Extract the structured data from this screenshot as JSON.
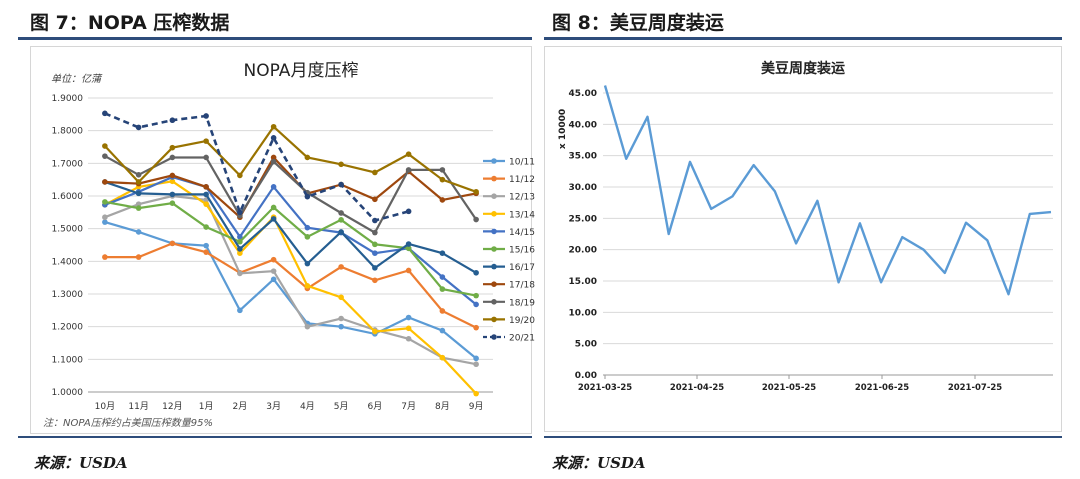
{
  "left": {
    "fig_title": "图 7：NOPA 压榨数据",
    "source": "来源：USDA"
  },
  "right": {
    "fig_title": "图 8：美豆周度装运",
    "source": "来源：USDA"
  },
  "chart_data": [
    {
      "type": "line",
      "title": "NOPA月度压榨",
      "unit_label": "单位：亿蒲",
      "note": "注：NOPA压榨约占美国压榨数量95%",
      "categories": [
        "10月",
        "11月",
        "12月",
        "1月",
        "2月",
        "3月",
        "4月",
        "5月",
        "6月",
        "7月",
        "8月",
        "9月"
      ],
      "ylim": [
        1.0,
        1.9
      ],
      "yticks": [
        "1.0000",
        "1.1000",
        "1.2000",
        "1.3000",
        "1.4000",
        "1.5000",
        "1.6000",
        "1.7000",
        "1.8000",
        "1.9000"
      ],
      "grid": true,
      "legend_position": "right",
      "series": [
        {
          "name": "10/11",
          "color": "#5b9bd5",
          "dashed": false,
          "values": [
            1.52,
            1.49,
            1.455,
            1.448,
            1.25,
            1.345,
            1.21,
            1.2,
            1.178,
            1.228,
            1.188,
            1.103
          ]
        },
        {
          "name": "11/12",
          "color": "#ed7d31",
          "dashed": false,
          "values": [
            1.413,
            1.413,
            1.455,
            1.428,
            1.365,
            1.405,
            1.317,
            1.383,
            1.342,
            1.372,
            1.248,
            1.197
          ]
        },
        {
          "name": "12/13",
          "color": "#a5a5a5",
          "dashed": false,
          "values": [
            1.535,
            1.575,
            1.6,
            1.588,
            1.363,
            1.37,
            1.2,
            1.225,
            1.19,
            1.163,
            1.105,
            1.085
          ]
        },
        {
          "name": "13/14",
          "color": "#ffc000",
          "dashed": false,
          "values": [
            1.573,
            1.628,
            1.645,
            1.575,
            1.425,
            1.535,
            1.325,
            1.29,
            1.185,
            1.195,
            1.105,
            0.995
          ]
        },
        {
          "name": "14/15",
          "color": "#4472c4",
          "dashed": false,
          "values": [
            1.573,
            1.613,
            1.658,
            1.628,
            1.475,
            1.628,
            1.503,
            1.488,
            1.425,
            1.44,
            1.352,
            1.268
          ]
        },
        {
          "name": "15/16",
          "color": "#70ad47",
          "dashed": false,
          "values": [
            1.582,
            1.563,
            1.578,
            1.505,
            1.46,
            1.565,
            1.475,
            1.527,
            1.452,
            1.44,
            1.315,
            1.295
          ]
        },
        {
          "name": "16/17",
          "color": "#255e91",
          "dashed": false,
          "values": [
            1.643,
            1.608,
            1.605,
            1.605,
            1.438,
            1.53,
            1.393,
            1.49,
            1.38,
            1.453,
            1.425,
            1.365
          ]
        },
        {
          "name": "17/18",
          "color": "#9e480e",
          "dashed": false,
          "values": [
            1.643,
            1.638,
            1.663,
            1.628,
            1.535,
            1.718,
            1.608,
            1.635,
            1.59,
            1.675,
            1.588,
            1.608
          ]
        },
        {
          "name": "18/19",
          "color": "#636363",
          "dashed": false,
          "values": [
            1.722,
            1.665,
            1.718,
            1.718,
            1.54,
            1.705,
            1.61,
            1.548,
            1.488,
            1.68,
            1.68,
            1.528
          ]
        },
        {
          "name": "19/20",
          "color": "#997300",
          "dashed": false,
          "values": [
            1.753,
            1.643,
            1.748,
            1.768,
            1.663,
            1.812,
            1.718,
            1.697,
            1.672,
            1.728,
            1.65,
            1.613
          ]
        },
        {
          "name": "20/21",
          "color": "#264478",
          "dashed": true,
          "values": [
            1.853,
            1.81,
            1.832,
            1.845,
            1.55,
            1.778,
            1.598,
            1.635,
            1.525,
            1.553,
            null,
            null
          ]
        }
      ]
    },
    {
      "type": "line",
      "title": "美豆周度装运",
      "ylabel": "x 10000",
      "ylim": [
        0,
        45
      ],
      "yticks": [
        "0.00",
        "5.00",
        "10.00",
        "15.00",
        "20.00",
        "25.00",
        "30.00",
        "35.00",
        "40.00",
        "45.00"
      ],
      "xticks": [
        "2021-03-25",
        "2021-04-25",
        "2021-05-25",
        "2021-06-25",
        "2021-07-25"
      ],
      "grid": true,
      "series": [
        {
          "color": "#5b9bd5",
          "values": [
            46.2,
            34.5,
            41.2,
            22.5,
            34.0,
            26.5,
            28.5,
            33.5,
            29.3,
            21.0,
            27.8,
            14.8,
            24.2,
            14.8,
            22.0,
            20.0,
            16.3,
            24.3,
            21.5,
            12.9,
            25.7,
            26.0
          ]
        }
      ]
    }
  ]
}
